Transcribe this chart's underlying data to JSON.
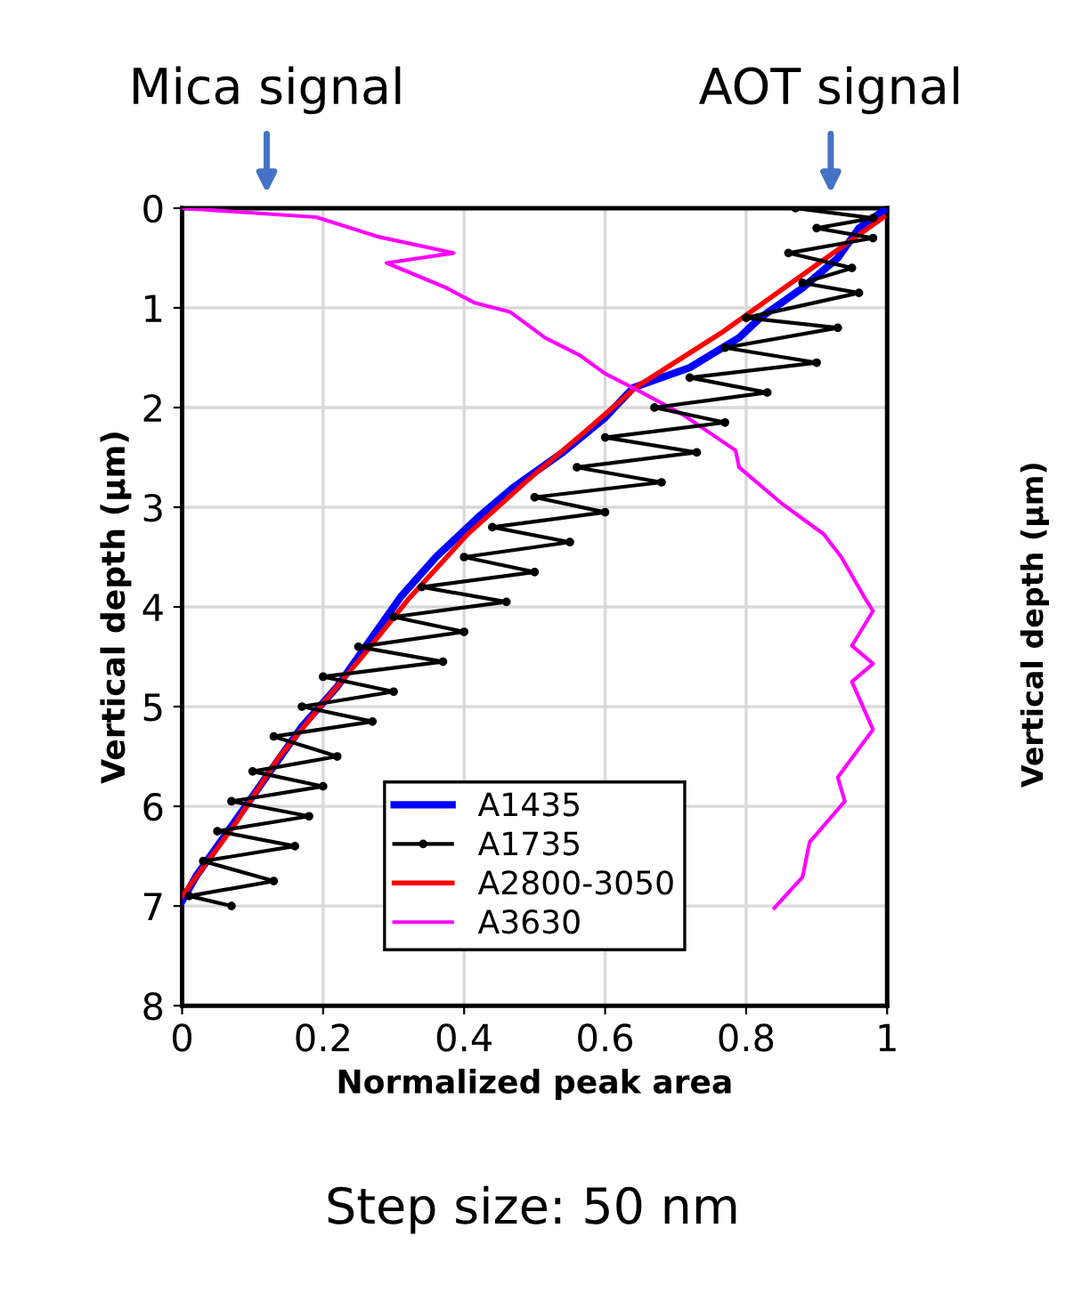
{
  "chart_data": {
    "type": "line",
    "xlabel": "Normalized peak area",
    "ylabel": "Vertical depth (μm)",
    "xlim": [
      0,
      1
    ],
    "xticks": [
      0,
      0.2,
      0.4,
      0.6,
      0.8,
      1
    ],
    "ylim": [
      8,
      0
    ],
    "yticks": [
      0,
      1,
      2,
      3,
      4,
      5,
      6,
      7,
      8
    ],
    "grid": true,
    "legend": "bottom",
    "series": [
      {
        "name": "A1435",
        "color": "#0000ff",
        "x": [
          1.0,
          0.96,
          0.93,
          0.88,
          0.82,
          0.79,
          0.72,
          0.64,
          0.6,
          0.54,
          0.47,
          0.42,
          0.36,
          0.31,
          0.27,
          0.22,
          0.17,
          0.12,
          0.09,
          0.05,
          0.02,
          0.0
        ],
        "values": [
          0.0,
          0.2,
          0.5,
          0.8,
          1.1,
          1.3,
          1.6,
          1.8,
          2.1,
          2.45,
          2.8,
          3.1,
          3.5,
          3.9,
          4.3,
          4.8,
          5.2,
          5.7,
          6.0,
          6.4,
          6.7,
          6.95
        ]
      },
      {
        "name": "A1735",
        "color": "#000000",
        "marker": "circle",
        "x": [
          0.87,
          0.98,
          0.9,
          0.98,
          0.86,
          0.95,
          0.88,
          0.96,
          0.8,
          0.93,
          0.77,
          0.9,
          0.72,
          0.83,
          0.67,
          0.77,
          0.6,
          0.73,
          0.56,
          0.68,
          0.5,
          0.6,
          0.44,
          0.55,
          0.4,
          0.5,
          0.34,
          0.46,
          0.3,
          0.4,
          0.25,
          0.37,
          0.2,
          0.3,
          0.17,
          0.27,
          0.13,
          0.22,
          0.1,
          0.2,
          0.07,
          0.18,
          0.05,
          0.16,
          0.03,
          0.13,
          0.01,
          0.07
        ],
        "values": [
          0.0,
          0.1,
          0.2,
          0.3,
          0.45,
          0.6,
          0.75,
          0.85,
          1.1,
          1.2,
          1.4,
          1.55,
          1.7,
          1.85,
          2.0,
          2.15,
          2.3,
          2.45,
          2.6,
          2.75,
          2.9,
          3.05,
          3.2,
          3.35,
          3.5,
          3.65,
          3.8,
          3.95,
          4.1,
          4.25,
          4.4,
          4.55,
          4.7,
          4.85,
          5.0,
          5.15,
          5.3,
          5.5,
          5.65,
          5.8,
          5.95,
          6.1,
          6.25,
          6.4,
          6.55,
          6.75,
          6.9,
          7.0
        ]
      },
      {
        "name": "A2800-3050",
        "color": "#ff0000",
        "x": [
          0.995,
          0.85,
          0.765,
          0.645,
          0.57,
          0.49,
          0.405,
          0.32,
          0.26,
          0.19,
          0.135,
          0.075,
          0.0
        ],
        "values": [
          0.09,
          0.82,
          1.25,
          1.79,
          2.25,
          2.73,
          3.27,
          3.93,
          4.46,
          5.05,
          5.53,
          6.18,
          6.9
        ]
      },
      {
        "name": "A3630",
        "color": "#ff00ff",
        "x": [
          0.0,
          0.19,
          0.28,
          0.385,
          0.29,
          0.375,
          0.415,
          0.465,
          0.515,
          0.565,
          0.6,
          0.65,
          0.71,
          0.785,
          0.79,
          0.85,
          0.91,
          0.935,
          0.97,
          0.98,
          0.95,
          0.98,
          0.95,
          0.98,
          0.93,
          0.94,
          0.89,
          0.88,
          0.84
        ],
        "values": [
          0.0,
          0.09,
          0.29,
          0.45,
          0.55,
          0.8,
          0.95,
          1.04,
          1.3,
          1.48,
          1.66,
          1.84,
          2.07,
          2.43,
          2.6,
          2.96,
          3.27,
          3.5,
          3.93,
          4.04,
          4.39,
          4.57,
          4.75,
          5.23,
          5.71,
          5.95,
          6.36,
          6.71,
          7.02
        ]
      }
    ],
    "annotations": [
      {
        "text": "Mica signal",
        "x": 0.12,
        "y": 0
      },
      {
        "text": "AOT signal",
        "x": 0.92,
        "y": 0
      },
      "Step size: 50 nm",
      "Vertical depth (μm)"
    ]
  }
}
